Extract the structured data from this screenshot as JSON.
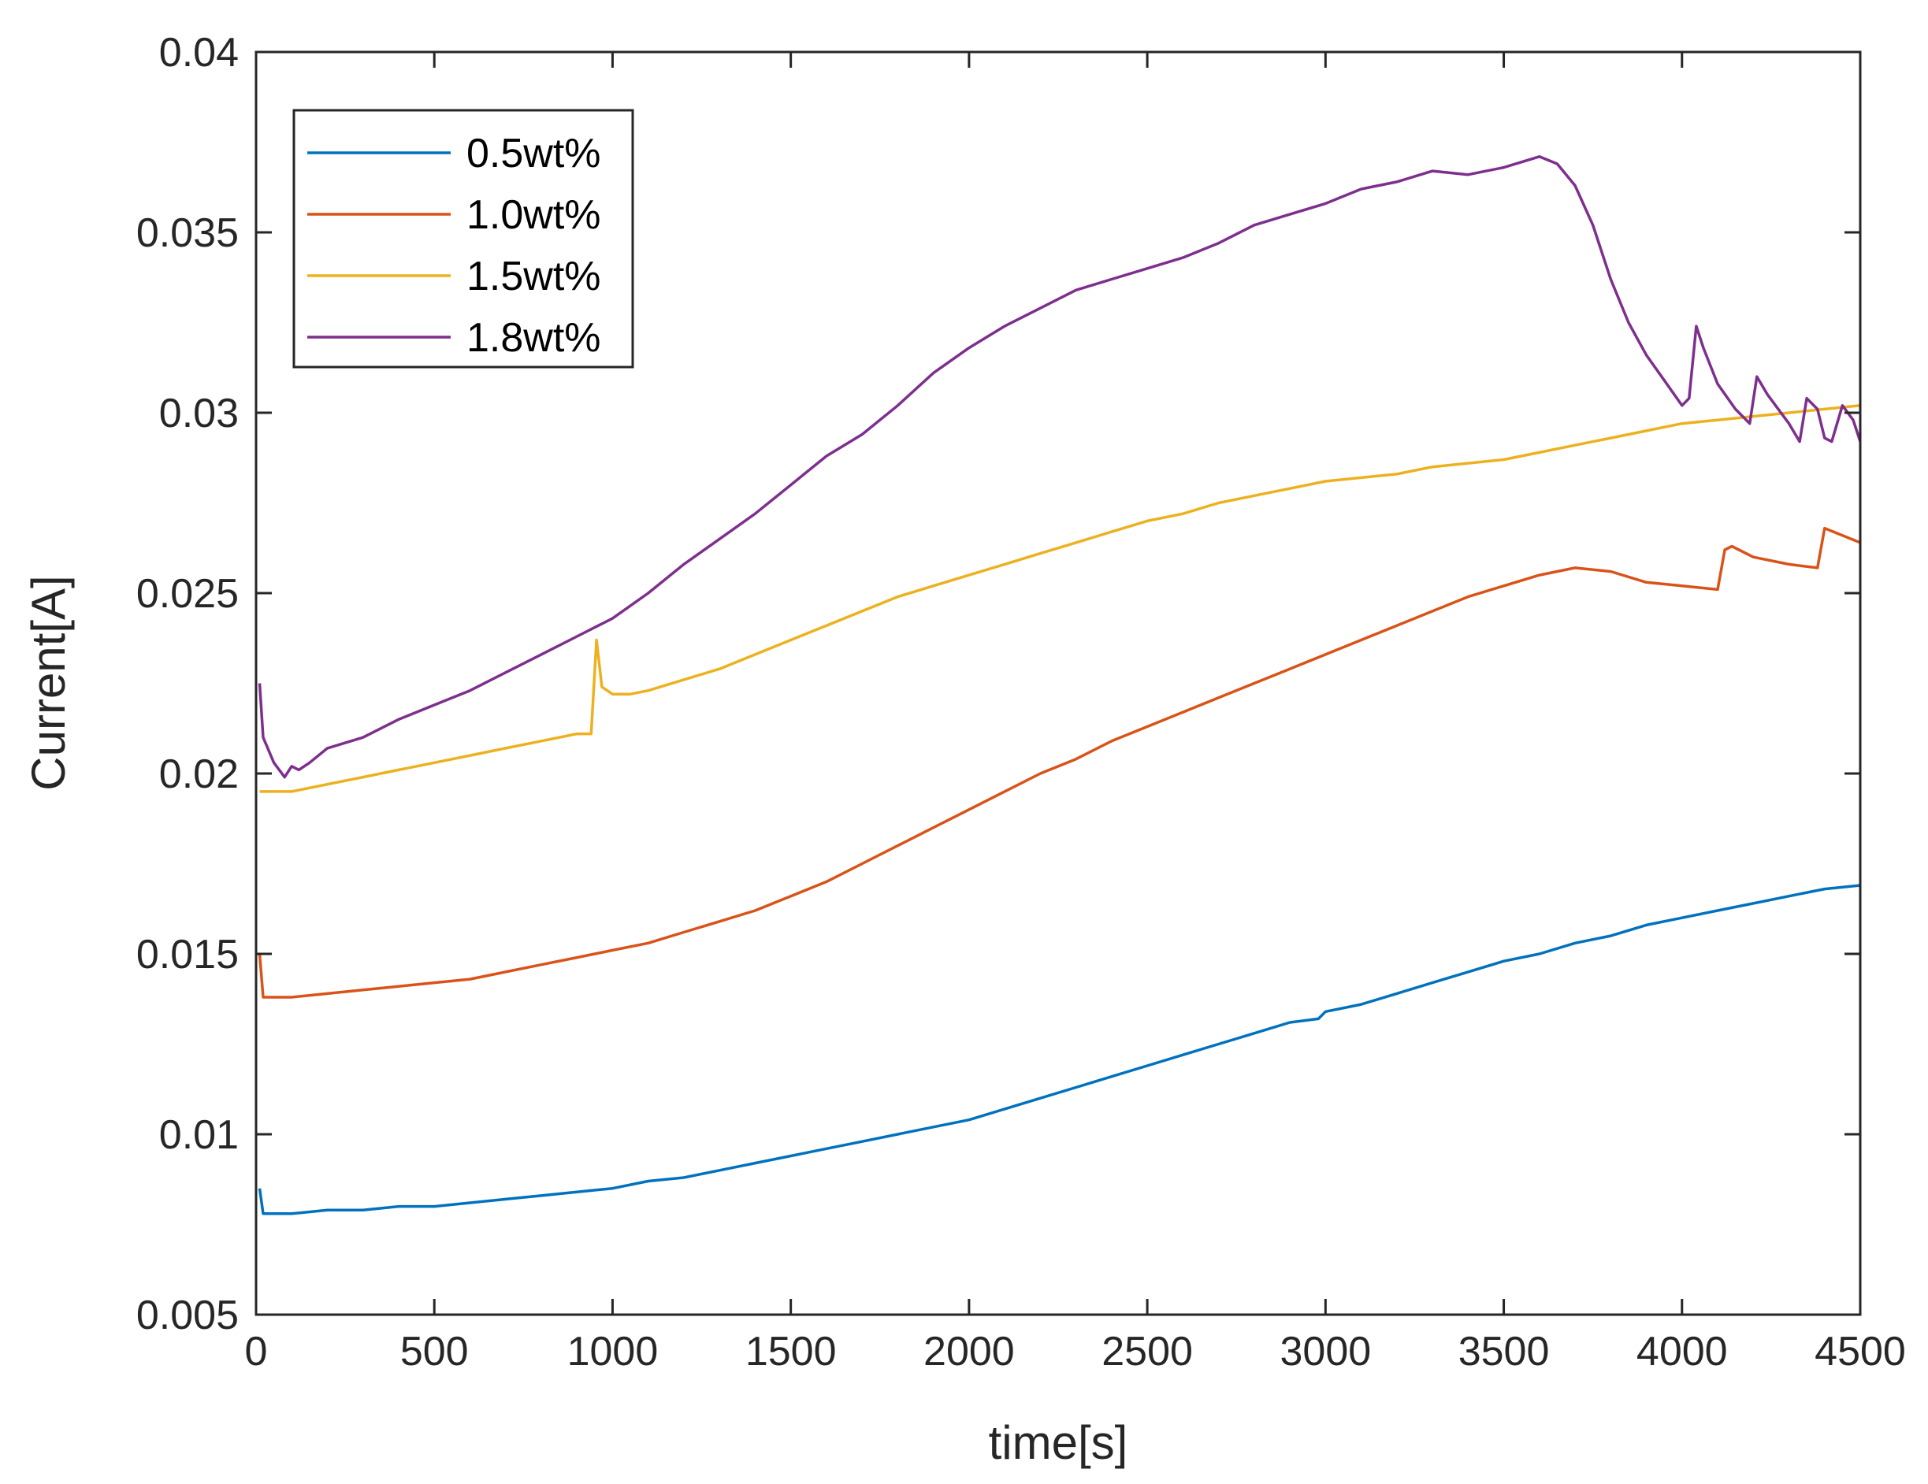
{
  "chart_data": {
    "type": "line",
    "title": "",
    "xlabel": "time[s]",
    "ylabel": "Current[A]",
    "xlim": [
      0,
      4500
    ],
    "ylim": [
      0.005,
      0.04
    ],
    "xticks": [
      0,
      500,
      1000,
      1500,
      2000,
      2500,
      3000,
      3500,
      4000,
      4500
    ],
    "xtick_labels": [
      "0",
      "500",
      "1000",
      "1500",
      "2000",
      "2500",
      "3000",
      "3500",
      "4000",
      "4500"
    ],
    "yticks": [
      0.005,
      0.01,
      0.015,
      0.02,
      0.025,
      0.03,
      0.035,
      0.04
    ],
    "ytick_labels": [
      "0.005",
      "0.01",
      "0.015",
      "0.02",
      "0.025",
      "0.03",
      "0.035",
      "0.04"
    ],
    "grid": false,
    "legend_position": "top-left",
    "series": [
      {
        "name": "0.5wt%",
        "color": "#0072BD",
        "x": [
          10,
          20,
          100,
          200,
          300,
          400,
          500,
          600,
          700,
          800,
          900,
          1000,
          1100,
          1200,
          1300,
          1400,
          1500,
          1600,
          1700,
          1800,
          1900,
          2000,
          2100,
          2200,
          2300,
          2400,
          2500,
          2600,
          2700,
          2800,
          2900,
          2980,
          3000,
          3100,
          3200,
          3300,
          3400,
          3500,
          3600,
          3700,
          3800,
          3900,
          4000,
          4100,
          4200,
          4300,
          4400,
          4500
        ],
        "y": [
          0.0085,
          0.0078,
          0.0078,
          0.0079,
          0.0079,
          0.008,
          0.008,
          0.0081,
          0.0082,
          0.0083,
          0.0084,
          0.0085,
          0.0087,
          0.0088,
          0.009,
          0.0092,
          0.0094,
          0.0096,
          0.0098,
          0.01,
          0.0102,
          0.0104,
          0.0107,
          0.011,
          0.0113,
          0.0116,
          0.0119,
          0.0122,
          0.0125,
          0.0128,
          0.0131,
          0.0132,
          0.0134,
          0.0136,
          0.0139,
          0.0142,
          0.0145,
          0.0148,
          0.015,
          0.0153,
          0.0155,
          0.0158,
          0.016,
          0.0162,
          0.0164,
          0.0166,
          0.0168,
          0.0169
        ]
      },
      {
        "name": "1.0wt%",
        "color": "#D95319",
        "x": [
          10,
          20,
          100,
          200,
          300,
          400,
          500,
          600,
          700,
          800,
          900,
          1000,
          1100,
          1200,
          1300,
          1400,
          1500,
          1600,
          1700,
          1800,
          1900,
          2000,
          2100,
          2200,
          2300,
          2400,
          2500,
          2600,
          2700,
          2800,
          2900,
          3000,
          3100,
          3200,
          3300,
          3400,
          3500,
          3600,
          3700,
          3800,
          3900,
          4000,
          4100,
          4120,
          4140,
          4200,
          4300,
          4380,
          4400,
          4450,
          4500
        ],
        "y": [
          0.015,
          0.0138,
          0.0138,
          0.0139,
          0.014,
          0.0141,
          0.0142,
          0.0143,
          0.0145,
          0.0147,
          0.0149,
          0.0151,
          0.0153,
          0.0156,
          0.0159,
          0.0162,
          0.0166,
          0.017,
          0.0175,
          0.018,
          0.0185,
          0.019,
          0.0195,
          0.02,
          0.0204,
          0.0209,
          0.0213,
          0.0217,
          0.0221,
          0.0225,
          0.0229,
          0.0233,
          0.0237,
          0.0241,
          0.0245,
          0.0249,
          0.0252,
          0.0255,
          0.0257,
          0.0256,
          0.0253,
          0.0252,
          0.0251,
          0.0262,
          0.0263,
          0.026,
          0.0258,
          0.0257,
          0.0268,
          0.0266,
          0.0264
        ]
      },
      {
        "name": "1.5wt%",
        "color": "#EDB120",
        "x": [
          10,
          100,
          200,
          300,
          400,
          500,
          600,
          700,
          800,
          900,
          940,
          955,
          970,
          1000,
          1050,
          1100,
          1200,
          1300,
          1400,
          1500,
          1600,
          1700,
          1800,
          1900,
          2000,
          2100,
          2200,
          2300,
          2400,
          2500,
          2600,
          2700,
          2800,
          2900,
          3000,
          3100,
          3200,
          3300,
          3400,
          3500,
          3600,
          3700,
          3800,
          3900,
          4000,
          4100,
          4200,
          4300,
          4400,
          4500
        ],
        "y": [
          0.0195,
          0.0195,
          0.0197,
          0.0199,
          0.0201,
          0.0203,
          0.0205,
          0.0207,
          0.0209,
          0.0211,
          0.0211,
          0.0237,
          0.0224,
          0.0222,
          0.0222,
          0.0223,
          0.0226,
          0.0229,
          0.0233,
          0.0237,
          0.0241,
          0.0245,
          0.0249,
          0.0252,
          0.0255,
          0.0258,
          0.0261,
          0.0264,
          0.0267,
          0.027,
          0.0272,
          0.0275,
          0.0277,
          0.0279,
          0.0281,
          0.0282,
          0.0283,
          0.0285,
          0.0286,
          0.0287,
          0.0289,
          0.0291,
          0.0293,
          0.0295,
          0.0297,
          0.0298,
          0.0299,
          0.03,
          0.0301,
          0.0302
        ]
      },
      {
        "name": "1.8wt%",
        "color": "#7E2F8E",
        "x": [
          10,
          20,
          50,
          80,
          100,
          120,
          150,
          200,
          300,
          400,
          500,
          600,
          700,
          800,
          900,
          1000,
          1100,
          1200,
          1300,
          1400,
          1500,
          1600,
          1700,
          1800,
          1900,
          2000,
          2100,
          2200,
          2300,
          2400,
          2500,
          2600,
          2700,
          2800,
          2900,
          3000,
          3100,
          3200,
          3300,
          3400,
          3500,
          3600,
          3650,
          3700,
          3750,
          3800,
          3850,
          3900,
          3950,
          4000,
          4020,
          4040,
          4060,
          4100,
          4150,
          4190,
          4210,
          4240,
          4300,
          4330,
          4350,
          4380,
          4400,
          4420,
          4450,
          4480,
          4500
        ],
        "y": [
          0.0225,
          0.021,
          0.0203,
          0.0199,
          0.0202,
          0.0201,
          0.0203,
          0.0207,
          0.021,
          0.0215,
          0.0219,
          0.0223,
          0.0228,
          0.0233,
          0.0238,
          0.0243,
          0.025,
          0.0258,
          0.0265,
          0.0272,
          0.028,
          0.0288,
          0.0294,
          0.0302,
          0.0311,
          0.0318,
          0.0324,
          0.0329,
          0.0334,
          0.0337,
          0.034,
          0.0343,
          0.0347,
          0.0352,
          0.0355,
          0.0358,
          0.0362,
          0.0364,
          0.0367,
          0.0366,
          0.0368,
          0.0371,
          0.0369,
          0.0363,
          0.0352,
          0.0337,
          0.0325,
          0.0316,
          0.0309,
          0.0302,
          0.0304,
          0.0324,
          0.0318,
          0.0308,
          0.0301,
          0.0297,
          0.031,
          0.0305,
          0.0297,
          0.0292,
          0.0304,
          0.0301,
          0.0293,
          0.0292,
          0.0302,
          0.0298,
          0.0292
        ]
      }
    ]
  }
}
